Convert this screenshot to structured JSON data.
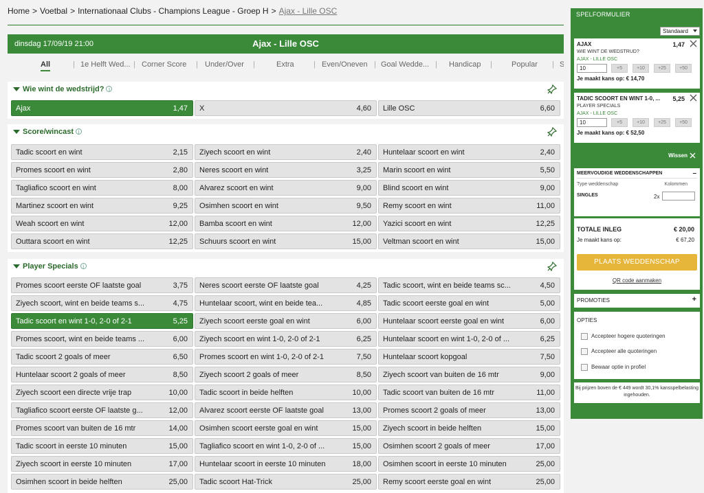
{
  "breadcrumb": {
    "items": [
      "Home",
      "Voetbal",
      "Internationaal Clubs - Champions League - Groep H"
    ],
    "sep": ">",
    "current": "Ajax - Lille OSC"
  },
  "event": {
    "date": "dinsdag 17/09/19 21:00",
    "title": "Ajax - Lille OSC"
  },
  "tabs": {
    "items": [
      "All",
      "1e Helft Wed...",
      "Corner Score",
      "Under/Over",
      "Extra",
      "Even/Oneven",
      "Goal Wedde...",
      "Handicap",
      "Popular",
      "S"
    ],
    "sep": "|",
    "active": "All"
  },
  "sections": {
    "winner": {
      "title": "Wie wint de wedstrijd?",
      "odds": [
        {
          "label": "Ajax",
          "value": "1,47"
        },
        {
          "label": "X",
          "value": "4,60"
        },
        {
          "label": "Lille OSC",
          "value": "6,60"
        }
      ]
    },
    "score_wincast": {
      "title": "Score/wincast",
      "odds": [
        {
          "label": "Tadic scoort en wint",
          "value": "2,15"
        },
        {
          "label": "Ziyech scoort en wint",
          "value": "2,40"
        },
        {
          "label": "Huntelaar scoort en wint",
          "value": "2,40"
        },
        {
          "label": "Promes scoort en wint",
          "value": "2,80"
        },
        {
          "label": "Neres scoort en wint",
          "value": "3,25"
        },
        {
          "label": "Marin scoort en wint",
          "value": "5,50"
        },
        {
          "label": "Tagliafico scoort en wint",
          "value": "8,00"
        },
        {
          "label": "Alvarez scoort en wint",
          "value": "9,00"
        },
        {
          "label": "Blind scoort en wint",
          "value": "9,00"
        },
        {
          "label": "Martinez scoort en wint",
          "value": "9,25"
        },
        {
          "label": "Osimhen scoort en wint",
          "value": "9,50"
        },
        {
          "label": "Remy scoort en wint",
          "value": "11,00"
        },
        {
          "label": "Weah scoort en wint",
          "value": "12,00"
        },
        {
          "label": "Bamba scoort en wint",
          "value": "12,00"
        },
        {
          "label": "Yazici scoort en wint",
          "value": "12,25"
        },
        {
          "label": "Outtara scoort en wint",
          "value": "12,25"
        },
        {
          "label": "Schuurs scoort en wint",
          "value": "15,00"
        },
        {
          "label": "Veltman scoort en wint",
          "value": "15,00"
        }
      ]
    },
    "player_specials": {
      "title": "Player Specials",
      "odds": [
        {
          "label": "Promes scoort eerste OF laatste goal",
          "value": "3,75"
        },
        {
          "label": "Neres scoort eerste OF laatste goal",
          "value": "4,25"
        },
        {
          "label": "Tadic scoort, wint en beide teams sc...",
          "value": "4,50"
        },
        {
          "label": "Ziyech scoort, wint en beide teams s...",
          "value": "4,75"
        },
        {
          "label": "Huntelaar scoort, wint en beide tea...",
          "value": "4,85"
        },
        {
          "label": "Tadic scoort eerste goal en wint",
          "value": "5,00"
        },
        {
          "label": "Tadic scoort en wint 1-0, 2-0 of 2-1",
          "value": "5,25"
        },
        {
          "label": "Ziyech scoort eerste goal en wint",
          "value": "6,00"
        },
        {
          "label": "Huntelaar scoort eerste goal en wint",
          "value": "6,00"
        },
        {
          "label": "Promes scoort, wint en beide teams ...",
          "value": "6,00"
        },
        {
          "label": "Ziyech scoort en wint 1-0, 2-0 of 2-1",
          "value": "6,25"
        },
        {
          "label": "Huntelaar scoort en wint 1-0, 2-0 of ...",
          "value": "6,25"
        },
        {
          "label": "Tadic scoort 2 goals of meer",
          "value": "6,50"
        },
        {
          "label": "Promes scoort en wint 1-0, 2-0 of 2-1",
          "value": "7,50"
        },
        {
          "label": "Huntelaar scoort kopgoal",
          "value": "7,50"
        },
        {
          "label": "Huntelaar scoort 2 goals of meer",
          "value": "8,50"
        },
        {
          "label": "Ziyech scoort 2 goals of meer",
          "value": "8,50"
        },
        {
          "label": "Ziyech scoort van buiten de 16 mtr",
          "value": "9,00"
        },
        {
          "label": "Ziyech scoort een directe vrije trap",
          "value": "10,00"
        },
        {
          "label": "Tadic scoort in beide helften",
          "value": "10,00"
        },
        {
          "label": "Tadic scoort van buiten de 16 mtr",
          "value": "11,00"
        },
        {
          "label": "Tagliafico scoort eerste OF laatste g...",
          "value": "12,00"
        },
        {
          "label": "Alvarez scoort eerste OF laatste goal",
          "value": "13,00"
        },
        {
          "label": "Promes scoort 2 goals of meer",
          "value": "13,00"
        },
        {
          "label": "Promes scoort van buiten de 16 mtr",
          "value": "14,00"
        },
        {
          "label": "Osimhen scoort eerste goal en wint",
          "value": "15,00"
        },
        {
          "label": "Ziyech scoort in beide helften",
          "value": "15,00"
        },
        {
          "label": "Tadic scoort in eerste 10 minuten",
          "value": "15,00"
        },
        {
          "label": "Tagliafico scoort en wint 1-0, 2-0 of ...",
          "value": "15,00"
        },
        {
          "label": "Osimhen scoort 2 goals of meer",
          "value": "17,00"
        },
        {
          "label": "Ziyech scoort in eerste 10 minuten",
          "value": "17,00"
        },
        {
          "label": "Huntelaar scoort in eerste 10 minuten",
          "value": "18,00"
        },
        {
          "label": "Osimhen scoort in eerste 10 minuten",
          "value": "25,00"
        },
        {
          "label": "Osimhen scoort in beide helften",
          "value": "25,00"
        },
        {
          "label": "Tadic scoort Hat-Trick",
          "value": "25,00"
        },
        {
          "label": "Remy scoort eerste goal en wint",
          "value": "25,00"
        }
      ]
    }
  },
  "betslip": {
    "title": "SPELFORMULIER",
    "mode": "Standaard",
    "quick_stakes": [
      "+5",
      "+10",
      "+25",
      "+50"
    ],
    "slips": [
      {
        "name": "AJAX",
        "odd": "1,47",
        "question": "WIE WINT DE WEDSTRUD?",
        "match": "AJAX - LILLE OSC",
        "stake": "10",
        "win": "Je maakt kans op: € 14,70"
      },
      {
        "name": "TADIC SCOORT EN WINT 1-0, ...",
        "odd": "5,25",
        "question": "PLAYER SPECIALS",
        "match": "AJAX - LILLE OSC",
        "stake": "10",
        "win": "Je maakt kans op: € 52,50"
      }
    ],
    "clear": "Wissen",
    "multi": {
      "title": "MEERVOUDIGE WEDDENSCHAPPEN",
      "type_label": "Type weddenschap",
      "cols_label": "Kolommen",
      "single": "SINGLES",
      "multiplier": "2x"
    },
    "total_label": "TOTALE INLEG",
    "total_value": "€ 20,00",
    "chance_label": "Je maakt kans op:",
    "chance_value": "€ 67,20",
    "place": "PLAATS WEDDENSCHAP",
    "qr": "QR code aanmaken",
    "promo": "PROMOTIES",
    "options_title": "OPTIES",
    "options": [
      "Accepteer hogere quoteringen",
      "Accepteer alle quoteringen",
      "Bewaar optie in profiel"
    ],
    "note": "Bij prijzen boven de € 449 wordt 30,1% kansspelbelasting ingehouden."
  },
  "colors": {
    "green": "#3a8a3a",
    "place_button": "#e6b63a",
    "odd_bg": "#e3e3e3"
  }
}
